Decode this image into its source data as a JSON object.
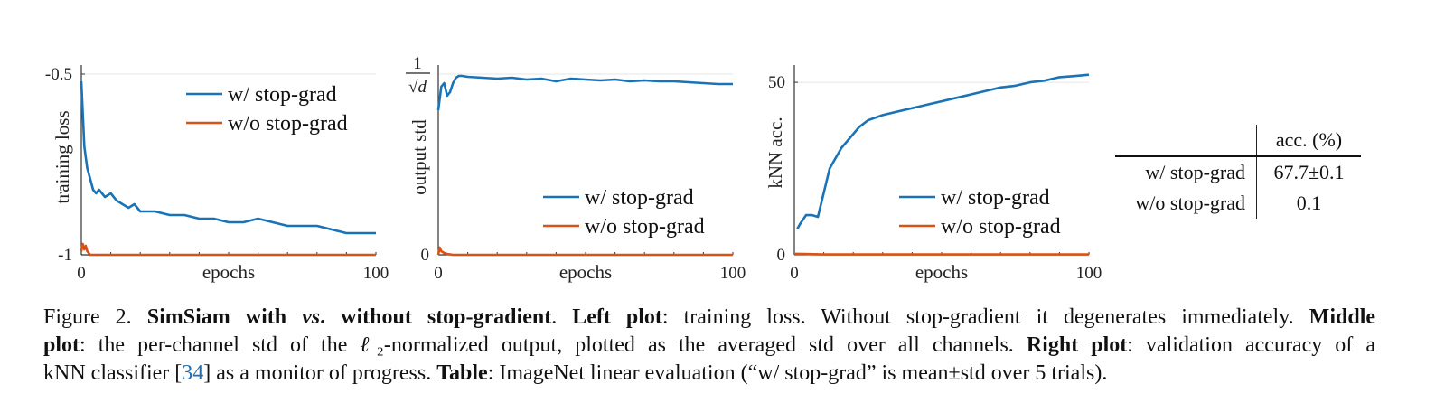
{
  "chart_data": [
    {
      "type": "line",
      "name": "left-plot",
      "title": "",
      "xlabel": "epochs",
      "ylabel": "training loss",
      "xlim": [
        0,
        100
      ],
      "ylim": [
        -1,
        -0.5
      ],
      "xticks": [
        "0",
        "100"
      ],
      "yticks": [
        "-0.5",
        "-1"
      ],
      "legend": [
        "w/ stop-grad",
        "w/o stop-grad"
      ],
      "legend_position": "top-right",
      "series": [
        {
          "name": "w/ stop-grad",
          "color": "#1a73b7",
          "x": [
            0,
            1,
            2,
            3,
            4,
            5,
            6,
            8,
            10,
            12,
            14,
            16,
            18,
            20,
            25,
            30,
            35,
            40,
            45,
            50,
            55,
            60,
            65,
            70,
            75,
            80,
            85,
            90,
            95,
            100
          ],
          "y": [
            -0.52,
            -0.7,
            -0.76,
            -0.79,
            -0.82,
            -0.83,
            -0.82,
            -0.84,
            -0.83,
            -0.85,
            -0.86,
            -0.87,
            -0.86,
            -0.88,
            -0.88,
            -0.89,
            -0.89,
            -0.9,
            -0.9,
            -0.91,
            -0.91,
            -0.9,
            -0.91,
            -0.92,
            -0.92,
            -0.92,
            -0.93,
            -0.94,
            -0.94,
            -0.94
          ]
        },
        {
          "name": "w/o stop-grad",
          "color": "#d95319",
          "x": [
            0,
            0.5,
            1,
            1.5,
            2,
            3,
            5,
            10,
            50,
            100
          ],
          "y": [
            -0.99,
            -0.97,
            -0.985,
            -0.975,
            -0.99,
            -1.0,
            -1.0,
            -1.0,
            -1.0,
            -1.0
          ]
        }
      ]
    },
    {
      "type": "line",
      "name": "middle-plot",
      "title": "",
      "xlabel": "epochs",
      "ylabel": "output std",
      "xlim": [
        0,
        100
      ],
      "ylim": [
        0,
        1
      ],
      "xticks": [
        "0",
        "100"
      ],
      "yticks": [
        "0"
      ],
      "ytick_top_label": {
        "numerator": "1",
        "denominator": "√d"
      },
      "legend": [
        "w/ stop-grad",
        "w/o stop-grad"
      ],
      "legend_position": "bottom-right",
      "series": [
        {
          "name": "w/ stop-grad",
          "color": "#1a73b7",
          "x": [
            0,
            1,
            2,
            3,
            4,
            5,
            6,
            7,
            8,
            10,
            15,
            20,
            25,
            30,
            35,
            40,
            45,
            50,
            55,
            60,
            65,
            70,
            75,
            80,
            85,
            90,
            95,
            100
          ],
          "y": [
            0.8,
            0.93,
            0.95,
            0.88,
            0.9,
            0.95,
            0.98,
            0.99,
            0.99,
            0.985,
            0.98,
            0.975,
            0.98,
            0.97,
            0.975,
            0.96,
            0.975,
            0.97,
            0.965,
            0.97,
            0.96,
            0.965,
            0.96,
            0.96,
            0.955,
            0.95,
            0.945,
            0.945
          ]
        },
        {
          "name": "w/o stop-grad",
          "color": "#d95319",
          "x": [
            0,
            0.5,
            1,
            2,
            3,
            5,
            10,
            50,
            100
          ],
          "y": [
            0.0,
            0.04,
            0.02,
            0.01,
            0.005,
            0.0,
            0.0,
            0.0,
            0.0
          ]
        }
      ]
    },
    {
      "type": "line",
      "name": "right-plot",
      "title": "",
      "xlabel": "epochs",
      "ylabel": "kNN acc.",
      "xlim": [
        0,
        100
      ],
      "ylim": [
        0,
        55
      ],
      "xticks": [
        "0",
        "100"
      ],
      "yticks": [
        "0",
        "50"
      ],
      "legend": [
        "w/ stop-grad",
        "w/o stop-grad"
      ],
      "legend_position": "bottom-right",
      "series": [
        {
          "name": "w/ stop-grad",
          "color": "#1a73b7",
          "x": [
            1,
            2,
            4,
            6,
            8,
            10,
            12,
            14,
            16,
            18,
            20,
            22,
            25,
            30,
            35,
            40,
            45,
            50,
            55,
            60,
            65,
            70,
            75,
            80,
            85,
            90,
            95,
            100
          ],
          "y": [
            7.5,
            9,
            11.5,
            11.5,
            11,
            18,
            25,
            28,
            31,
            33,
            35,
            37,
            39,
            40.5,
            41.5,
            42.5,
            43.5,
            44.5,
            45.5,
            46.5,
            47.5,
            48.5,
            49,
            50,
            50.5,
            51.5,
            51.8,
            52.2
          ]
        },
        {
          "name": "w/o stop-grad",
          "color": "#d95319",
          "x": [
            0,
            5,
            10,
            20,
            30,
            40,
            50,
            60,
            70,
            80,
            90,
            100
          ],
          "y": [
            0.3,
            0.2,
            0.1,
            0.1,
            0.1,
            0.1,
            0.1,
            0.1,
            0.1,
            0.1,
            0.1,
            0.1
          ]
        }
      ]
    },
    {
      "type": "table",
      "name": "accuracy-table",
      "header": [
        "",
        "acc. (%)"
      ],
      "rows": [
        [
          "w/ stop-grad",
          "67.7±0.1"
        ],
        [
          "w/o stop-grad",
          "0.1"
        ]
      ]
    }
  ],
  "caption": {
    "line1": [
      {
        "t": "Figure 2. "
      },
      {
        "t": "SimSiam with ",
        "b": true
      },
      {
        "t": "vs",
        "b": true,
        "i": true
      },
      {
        "t": ". without stop-gradient",
        "b": true
      },
      {
        "t": ". "
      },
      {
        "t": "Left plot",
        "b": true
      },
      {
        "t": ": training loss. Without stop-gradient it degenerates immediately. "
      },
      {
        "t": "Middle",
        "b": true
      }
    ],
    "line2": [
      {
        "t": "plot",
        "b": true
      },
      {
        "t": ": the per-channel std of the "
      },
      {
        "t": "ℓ",
        "i": true
      },
      {
        "t": "₂"
      },
      {
        "t": "-normalized output, plotted as the averaged std over all channels. "
      },
      {
        "t": "Right plot",
        "b": true
      },
      {
        "t": ": validation accuracy of a"
      }
    ],
    "line3": [
      {
        "t": "kNN classifier ["
      },
      {
        "t": "34",
        "cite": true
      },
      {
        "t": "] as a monitor of progress. "
      },
      {
        "t": "Table",
        "b": true
      },
      {
        "t": ": ImageNet linear evaluation (“w/ stop-grad” is mean±std over 5 trials)."
      }
    ]
  }
}
